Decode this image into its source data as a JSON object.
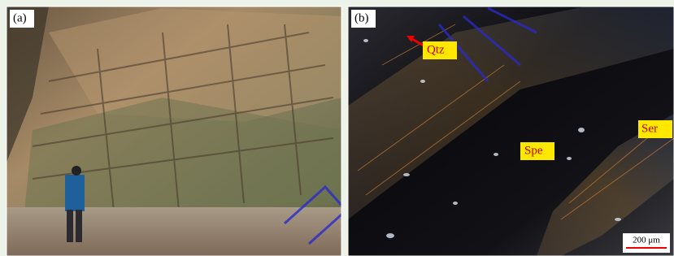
{
  "panels": [
    {
      "label": "(a)"
    },
    {
      "label": "(b)",
      "annotations": [
        {
          "label": "Qtz"
        },
        {
          "label": "Spe"
        },
        {
          "label": "Ser"
        }
      ],
      "scale_bar": "200 μm"
    }
  ]
}
